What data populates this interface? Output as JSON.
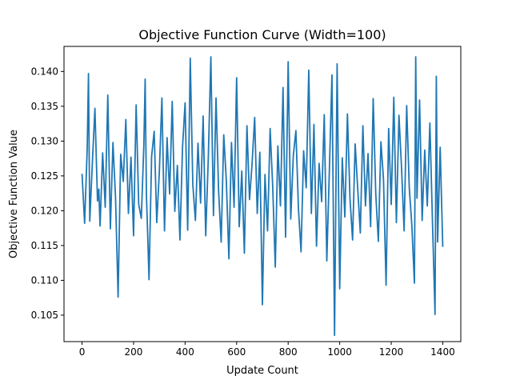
{
  "chart_data": {
    "type": "line",
    "title": "Objective Function Curve (Width=100)",
    "xlabel": "Update Count",
    "ylabel": "Objective Function Value",
    "xlim": [
      -70,
      1470
    ],
    "ylim": [
      0.1012,
      0.1436
    ],
    "xticks": [
      0,
      200,
      400,
      600,
      800,
      1000,
      1200,
      1400
    ],
    "yticks": [
      0.105,
      0.11,
      0.115,
      0.12,
      0.125,
      0.13,
      0.135,
      0.14
    ],
    "grid": false,
    "legend": "none",
    "line_color": "#1f77b4",
    "series": [
      {
        "x": [
          0,
          10,
          20,
          25,
          30,
          40,
          50,
          60,
          65,
          70,
          80,
          90,
          100,
          110,
          120,
          130,
          140,
          150,
          160,
          170,
          180,
          190,
          200,
          210,
          220,
          230,
          240,
          245,
          250,
          255,
          260,
          270,
          280,
          290,
          300,
          310,
          320,
          330,
          340,
          350,
          360,
          370,
          380,
          390,
          400,
          410,
          420,
          430,
          440,
          450,
          460,
          470,
          480,
          490,
          500,
          510,
          520,
          530,
          540,
          550,
          560,
          570,
          580,
          590,
          600,
          610,
          620,
          630,
          640,
          650,
          660,
          670,
          680,
          690,
          700,
          710,
          720,
          730,
          740,
          750,
          760,
          770,
          780,
          790,
          800,
          810,
          820,
          830,
          840,
          850,
          860,
          870,
          880,
          890,
          900,
          910,
          920,
          930,
          940,
          950,
          960,
          970,
          980,
          990,
          1000,
          1010,
          1020,
          1030,
          1040,
          1050,
          1060,
          1070,
          1080,
          1090,
          1100,
          1110,
          1120,
          1130,
          1140,
          1150,
          1160,
          1170,
          1180,
          1190,
          1200,
          1210,
          1220,
          1230,
          1240,
          1250,
          1260,
          1270,
          1280,
          1290,
          1295,
          1300,
          1310,
          1320,
          1330,
          1340,
          1350,
          1360,
          1370,
          1375,
          1380,
          1390,
          1400
        ],
        "y": [
          0.1253,
          0.1182,
          0.1289,
          0.1397,
          0.1185,
          0.1268,
          0.1347,
          0.1214,
          0.1231,
          0.1178,
          0.1283,
          0.1205,
          0.1366,
          0.1174,
          0.1298,
          0.1219,
          0.1076,
          0.1281,
          0.1242,
          0.1331,
          0.1196,
          0.1277,
          0.1164,
          0.1352,
          0.1209,
          0.1189,
          0.1295,
          0.1389,
          0.1221,
          0.1163,
          0.1101,
          0.1278,
          0.1314,
          0.1183,
          0.1256,
          0.1362,
          0.1171,
          0.1305,
          0.1224,
          0.1357,
          0.1199,
          0.1265,
          0.1158,
          0.1291,
          0.1355,
          0.1172,
          0.1419,
          0.1237,
          0.1186,
          0.1297,
          0.1211,
          0.1336,
          0.1164,
          0.1275,
          0.1421,
          0.1193,
          0.1362,
          0.1228,
          0.1155,
          0.1309,
          0.1243,
          0.1131,
          0.1298,
          0.1205,
          0.1391,
          0.1177,
          0.1257,
          0.1139,
          0.1322,
          0.1216,
          0.1268,
          0.1334,
          0.1196,
          0.1284,
          0.1065,
          0.1252,
          0.1171,
          0.1318,
          0.1235,
          0.1119,
          0.1293,
          0.1207,
          0.1377,
          0.1162,
          0.1414,
          0.1188,
          0.1279,
          0.1315,
          0.1202,
          0.1141,
          0.1286,
          0.1233,
          0.1402,
          0.1196,
          0.1324,
          0.1149,
          0.1268,
          0.1213,
          0.1338,
          0.1128,
          0.1259,
          0.1395,
          0.1021,
          0.1411,
          0.1088,
          0.1276,
          0.1191,
          0.1339,
          0.1217,
          0.1158,
          0.1296,
          0.1231,
          0.1168,
          0.1322,
          0.1207,
          0.1282,
          0.1177,
          0.1361,
          0.1224,
          0.1156,
          0.1299,
          0.1245,
          0.1093,
          0.1318,
          0.1209,
          0.1363,
          0.1183,
          0.1337,
          0.1262,
          0.1171,
          0.1351,
          0.1233,
          0.1179,
          0.1096,
          0.1421,
          0.1218,
          0.1359,
          0.1186,
          0.1287,
          0.1207,
          0.1326,
          0.1185,
          0.1051,
          0.1393,
          0.1155,
          0.1291,
          0.1148
        ]
      }
    ]
  }
}
